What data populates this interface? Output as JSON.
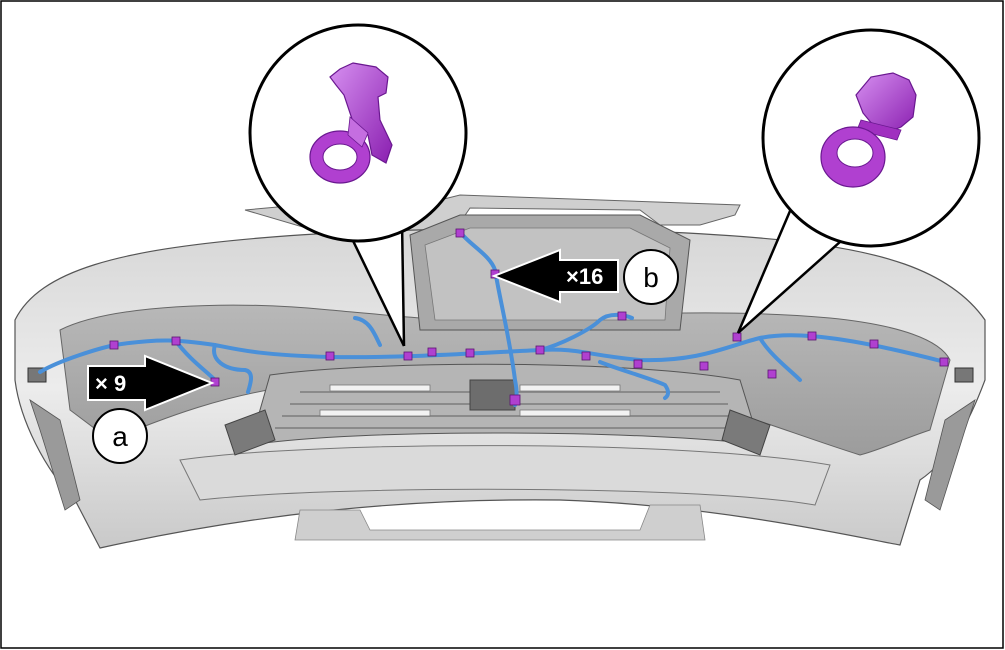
{
  "diagram": {
    "callouts": {
      "a": {
        "letter": "a",
        "quantity": "× 9"
      },
      "b": {
        "letter": "b",
        "quantity": "×16"
      }
    },
    "colors": {
      "harness": "#4a90d9",
      "clip": "#b040d0",
      "bumper_fill": "#e3e3e3",
      "bumper_dark": "#8f8f8f",
      "outline": "#000000"
    },
    "icons": {
      "clip_zoom_left": "push-clip-icon",
      "clip_zoom_right": "push-clip-icon"
    }
  }
}
